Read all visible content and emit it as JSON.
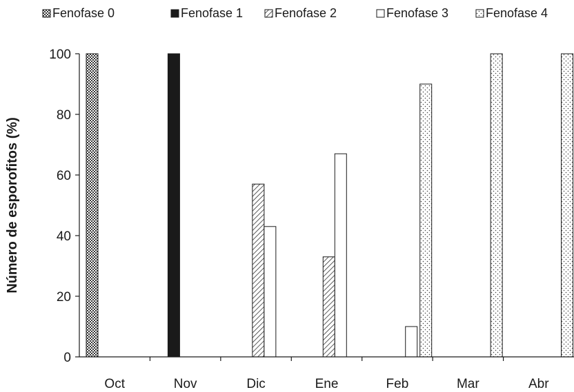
{
  "chart_data": {
    "type": "bar",
    "title": "",
    "xlabel": "",
    "ylabel": "Número de esporofitos (%)",
    "ylim": [
      0,
      100
    ],
    "yticks": [
      0,
      20,
      40,
      60,
      80,
      100
    ],
    "grid": false,
    "legend_position": "top",
    "categories": [
      "Oct",
      "Nov",
      "Dic",
      "Ene",
      "Feb",
      "Mar",
      "Abr"
    ],
    "series": [
      {
        "name": "Fenofase 0",
        "pattern": "checker",
        "values": [
          100,
          0,
          0,
          0,
          0,
          0,
          0
        ]
      },
      {
        "name": "Fenofase 1",
        "pattern": "solid-black",
        "values": [
          0,
          100,
          0,
          0,
          0,
          0,
          0
        ]
      },
      {
        "name": "Fenofase 2",
        "pattern": "diagonal-hatch",
        "values": [
          0,
          0,
          57,
          33,
          0,
          0,
          0
        ]
      },
      {
        "name": "Fenofase 3",
        "pattern": "white",
        "values": [
          0,
          0,
          43,
          67,
          10,
          0,
          0
        ]
      },
      {
        "name": "Fenofase 4",
        "pattern": "dotted",
        "values": [
          0,
          0,
          0,
          0,
          90,
          100,
          100
        ]
      }
    ]
  }
}
